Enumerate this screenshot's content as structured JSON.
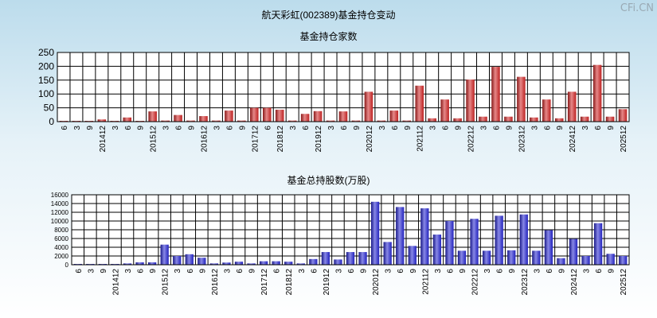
{
  "page": {
    "main_title": "航天彩虹(002389)基金持仓变动",
    "watermark": "CFi.CN"
  },
  "chart_data": [
    {
      "type": "bar",
      "title": "基金持仓家数",
      "ylim": [
        0,
        250
      ],
      "yticks": [
        "250",
        "200",
        "150",
        "100",
        "50",
        "0"
      ],
      "x_labels": [
        "6",
        "3",
        "9",
        "201412",
        "3",
        "6",
        "9",
        "201512",
        "3",
        "6",
        "9",
        "201612",
        "3",
        "6",
        "9",
        "201712",
        "6",
        "201812",
        "3",
        "6",
        "201912",
        "3",
        "6",
        "9",
        "202012",
        "3",
        "6",
        "9",
        "202112",
        "3",
        "6",
        "9",
        "202212",
        "3",
        "6",
        "9",
        "202312",
        "3",
        "6",
        "9",
        "202412",
        "3",
        "6",
        "9",
        "202512"
      ],
      "values": [
        2,
        2,
        2,
        8,
        2,
        15,
        2,
        37,
        4,
        24,
        4,
        20,
        4,
        40,
        4,
        50,
        50,
        43,
        4,
        28,
        38,
        4,
        37,
        4,
        108,
        4,
        40,
        4,
        130,
        12,
        80,
        12,
        152,
        18,
        198,
        18,
        162,
        15,
        80,
        12,
        108,
        18,
        205,
        18,
        45
      ],
      "colors": {
        "bar": "#d22626",
        "background": "#ffffff",
        "grid": "#000000"
      }
    },
    {
      "type": "bar",
      "title": "基金总持股数(万股)",
      "ylim": [
        0,
        16000
      ],
      "yticks": [
        "16000",
        "14000",
        "12000",
        "10000",
        "8000",
        "6000",
        "4000",
        "2000",
        "0"
      ],
      "x_labels": [
        "6",
        "3",
        "9",
        "201412",
        "3",
        "6",
        "9",
        "201512",
        "3",
        "6",
        "9",
        "201612",
        "3",
        "6",
        "9",
        "201712",
        "6",
        "201812",
        "3",
        "6",
        "201912",
        "3",
        "6",
        "9",
        "202012",
        "3",
        "6",
        "9",
        "202112",
        "3",
        "6",
        "9",
        "202212",
        "3",
        "6",
        "9",
        "202312",
        "3",
        "6",
        "9",
        "202412",
        "3",
        "6",
        "9",
        "202512"
      ],
      "values": [
        50,
        50,
        50,
        50,
        300,
        550,
        550,
        4600,
        2000,
        2400,
        1600,
        300,
        500,
        700,
        300,
        800,
        800,
        700,
        300,
        1300,
        2900,
        1200,
        2900,
        2900,
        14400,
        5200,
        13200,
        4300,
        12900,
        6900,
        10000,
        3200,
        10500,
        3200,
        11200,
        3300,
        11500,
        3200,
        7900,
        1500,
        5900,
        2000,
        9500,
        2500,
        2000
      ],
      "colors": {
        "bar": "#2626d2",
        "background": "#ffffff",
        "grid": "#000000"
      }
    }
  ]
}
